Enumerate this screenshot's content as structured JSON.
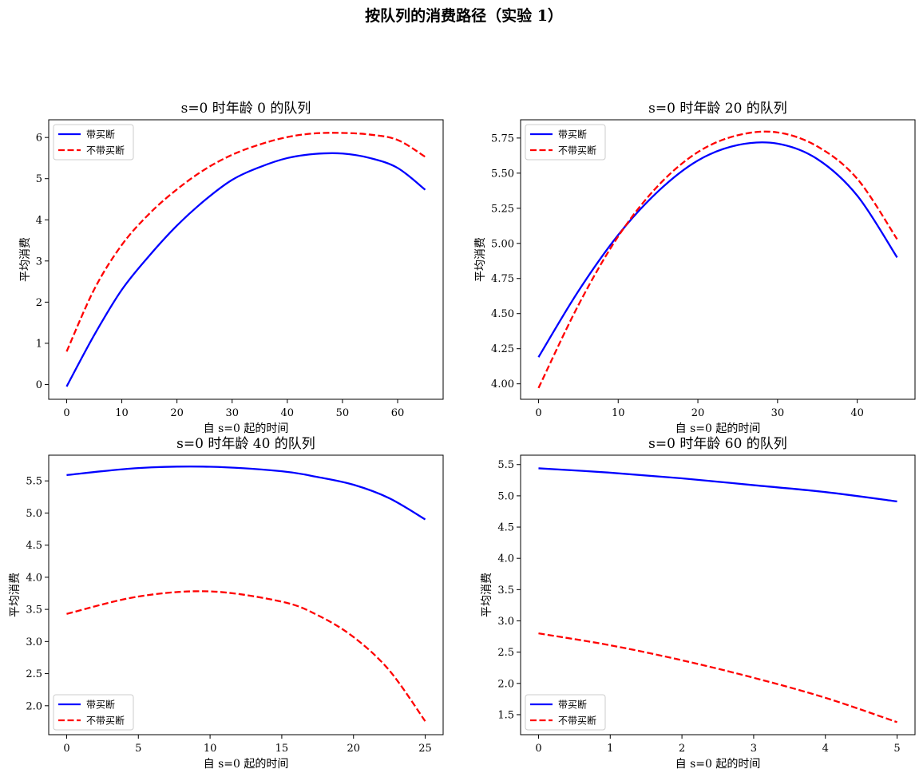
{
  "figure": {
    "title": "按队列的消费路径（实验 1）"
  },
  "legend_labels": [
    "带买断",
    "不带买断"
  ],
  "colors": {
    "with_buyout": "#0000ff",
    "without_buyout": "#ff0000"
  },
  "chart_data": [
    {
      "type": "line",
      "title": "s=0 时年龄 0 的队列",
      "xlabel": "自 s=0 起的时间",
      "ylabel": "平均消费",
      "xlim": [
        -3.25,
        68.25
      ],
      "ylim": [
        -0.36,
        6.43
      ],
      "xticks": [
        0,
        10,
        20,
        30,
        40,
        50,
        60
      ],
      "yticks": [
        0,
        1,
        2,
        3,
        4,
        5,
        6
      ],
      "ytick_decimals": 0,
      "legend": "top-left",
      "grid": false,
      "series": [
        {
          "name": "带买断",
          "style": "solid",
          "x": [
            0,
            5,
            10,
            15,
            20,
            25,
            30,
            35,
            40,
            45,
            50,
            55,
            60,
            65
          ],
          "y": [
            -0.05,
            1.2,
            2.3,
            3.13,
            3.86,
            4.47,
            4.97,
            5.28,
            5.5,
            5.6,
            5.61,
            5.5,
            5.26,
            4.73
          ]
        },
        {
          "name": "不带买断",
          "style": "dashed",
          "x": [
            0,
            5,
            10,
            15,
            20,
            25,
            30,
            35,
            40,
            45,
            50,
            55,
            60,
            65
          ],
          "y": [
            0.8,
            2.31,
            3.39,
            4.15,
            4.74,
            5.22,
            5.58,
            5.83,
            6.01,
            6.1,
            6.11,
            6.07,
            5.94,
            5.53
          ]
        }
      ]
    },
    {
      "type": "line",
      "title": "s=0 时年龄 20 的队列",
      "xlabel": "自 s=0 起的时间",
      "ylabel": "平均消费",
      "xlim": [
        -2.25,
        47.25
      ],
      "ylim": [
        3.89,
        5.88
      ],
      "xticks": [
        0,
        10,
        20,
        30,
        40
      ],
      "yticks": [
        4.0,
        4.25,
        4.5,
        4.75,
        5.0,
        5.25,
        5.5,
        5.75
      ],
      "ytick_decimals": 2,
      "legend": "top-left",
      "grid": false,
      "series": [
        {
          "name": "带买断",
          "style": "solid",
          "x": [
            0,
            5,
            10,
            15,
            20,
            25,
            30,
            35,
            40,
            45
          ],
          "y": [
            4.19,
            4.66,
            5.06,
            5.37,
            5.59,
            5.7,
            5.71,
            5.6,
            5.34,
            4.9
          ]
        },
        {
          "name": "不带买断",
          "style": "dashed",
          "x": [
            0,
            5,
            10,
            15,
            20,
            25,
            30,
            35,
            40,
            45
          ],
          "y": [
            3.97,
            4.56,
            5.05,
            5.41,
            5.65,
            5.77,
            5.79,
            5.69,
            5.46,
            5.03
          ]
        }
      ]
    },
    {
      "type": "line",
      "title": "s=0 时年龄 40 的队列",
      "xlabel": "自 s=0 起的时间",
      "ylabel": "平均消费",
      "xlim": [
        -1.25,
        26.25
      ],
      "ylim": [
        1.55,
        5.9
      ],
      "xticks": [
        0,
        5,
        10,
        15,
        20,
        25
      ],
      "yticks": [
        2.0,
        2.5,
        3.0,
        3.5,
        4.0,
        4.5,
        5.0,
        5.5
      ],
      "ytick_decimals": 1,
      "legend": "bottom-left",
      "grid": false,
      "series": [
        {
          "name": "带买断",
          "style": "solid",
          "x": [
            0,
            5,
            10,
            15,
            17.5,
            20,
            22.5,
            25
          ],
          "y": [
            5.59,
            5.7,
            5.72,
            5.65,
            5.56,
            5.44,
            5.23,
            4.9
          ]
        },
        {
          "name": "不带买断",
          "style": "dashed",
          "x": [
            0,
            5,
            10,
            15,
            17.5,
            20,
            22.5,
            25
          ],
          "y": [
            3.43,
            3.7,
            3.78,
            3.62,
            3.41,
            3.07,
            2.55,
            1.76
          ]
        }
      ]
    },
    {
      "type": "line",
      "title": "s=0 时年龄 60 的队列",
      "xlabel": "自 s=0 起的时间",
      "ylabel": "平均消费",
      "xlim": [
        -0.25,
        5.25
      ],
      "ylim": [
        1.18,
        5.65
      ],
      "xticks": [
        0,
        1,
        2,
        3,
        4,
        5
      ],
      "yticks": [
        1.5,
        2.0,
        2.5,
        3.0,
        3.5,
        4.0,
        4.5,
        5.0,
        5.5
      ],
      "ytick_decimals": 1,
      "legend": "bottom-left",
      "grid": false,
      "series": [
        {
          "name": "带买断",
          "style": "solid",
          "x": [
            0,
            1,
            2,
            3,
            4,
            5
          ],
          "y": [
            5.44,
            5.37,
            5.28,
            5.17,
            5.06,
            4.91
          ]
        },
        {
          "name": "不带买断",
          "style": "dashed",
          "x": [
            0,
            1,
            2,
            3,
            4,
            5
          ],
          "y": [
            2.8,
            2.61,
            2.37,
            2.09,
            1.77,
            1.38
          ]
        }
      ]
    }
  ]
}
